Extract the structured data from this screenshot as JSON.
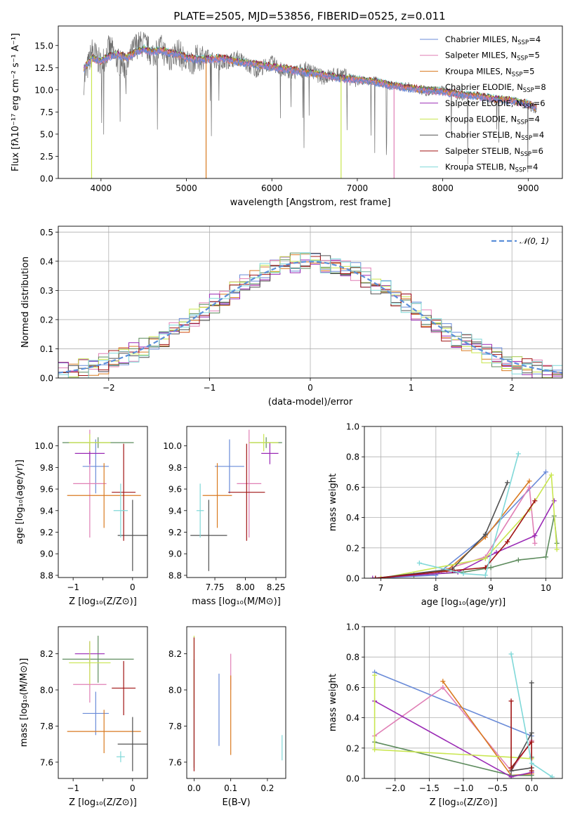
{
  "title": "PLATE=2505, MJD=53856, FIBERID=0525, z=0.011",
  "colors": [
    "#6a8bd8",
    "#e07fb5",
    "#d97a20",
    "#5e8c5e",
    "#9a2ab5",
    "#c9e64f",
    "#505050",
    "#a01414",
    "#7fd8d8"
  ],
  "legend": [
    {
      "name": "Chabrier MILES",
      "n": "4"
    },
    {
      "name": "Salpeter MILES",
      "n": "5"
    },
    {
      "name": "Kroupa MILES",
      "n": "5"
    },
    {
      "name": "Chabrier ELODIE",
      "n": "8"
    },
    {
      "name": "Salpeter ELODIE",
      "n": "6"
    },
    {
      "name": "Kroupa ELODIE",
      "n": "4"
    },
    {
      "name": "Chabrier STELIB",
      "n": "4"
    },
    {
      "name": "Salpeter STELIB",
      "n": "6"
    },
    {
      "name": "Kroupa STELIB",
      "n": "4"
    }
  ],
  "legend_prefix": "N",
  "legend_sub": "SSP",
  "normal_label": "𝒩(0, 1)",
  "chart_data": [
    {
      "id": "spectrum",
      "type": "line",
      "xlabel": "wavelength [Angstrom, rest frame]",
      "ylabel": "Flux [fλ10⁻¹⁷ erg cm⁻² s⁻¹ A⁻¹]",
      "xlim": [
        3500,
        9400
      ],
      "ylim": [
        0,
        17.2
      ],
      "xticks": [
        4000,
        5000,
        6000,
        7000,
        8000,
        9000
      ],
      "yticks": [
        0.0,
        2.5,
        5.0,
        7.5,
        10.0,
        12.5,
        15.0
      ],
      "x": [
        3800,
        3900,
        4000,
        4100,
        4200,
        4300,
        4400,
        4500,
        4600,
        4700,
        4800,
        4900,
        5000,
        5200,
        5400,
        5600,
        5800,
        6000,
        6200,
        6400,
        6600,
        6800,
        7000,
        7200,
        7400,
        7600,
        7800,
        8000,
        8200,
        8400,
        8600,
        8800,
        9000,
        9100
      ],
      "model_flux": [
        12.4,
        13.6,
        13.2,
        13.8,
        14.0,
        13.6,
        14.2,
        14.6,
        14.3,
        14.5,
        14.2,
        14.0,
        13.6,
        13.4,
        13.6,
        13.2,
        12.9,
        12.6,
        12.3,
        12.0,
        11.7,
        11.3,
        11.2,
        10.9,
        10.5,
        10.2,
        10.0,
        9.8,
        9.5,
        9.3,
        9.0,
        8.8,
        8.4,
        7.9
      ],
      "data_flux": [
        11.0,
        14.5,
        12.8,
        14.8,
        13.2,
        12.5,
        15.0,
        15.2,
        14.0,
        14.8,
        13.4,
        14.4,
        12.9,
        13.9,
        13.0,
        13.6,
        12.2,
        13.0,
        11.8,
        12.3,
        11.4,
        11.8,
        10.8,
        11.2,
        10.3,
        10.5,
        9.6,
        10.1,
        9.1,
        9.5,
        8.7,
        9.0,
        8.1,
        7.6
      ],
      "dips": [
        {
          "x": 3890,
          "y": 0.0,
          "series": 5
        },
        {
          "x": 5230,
          "y": 0.0,
          "series": 2
        },
        {
          "x": 6810,
          "y": 0.0,
          "series": 5
        },
        {
          "x": 7430,
          "y": 0.0,
          "series": 1
        }
      ]
    },
    {
      "id": "residuals",
      "type": "line",
      "xlabel": "(data-model)/error",
      "ylabel": "Normed distribution",
      "xlim": [
        -2.5,
        2.5
      ],
      "ylim": [
        0,
        0.52
      ],
      "xticks": [
        -2,
        -1,
        0,
        1,
        2
      ],
      "yticks": [
        0.0,
        0.1,
        0.2,
        0.3,
        0.4,
        0.5
      ]
    },
    {
      "id": "age_vs_Z",
      "type": "scatter",
      "xlabel": "Z [log₁₀(Z/Z⊙)]",
      "ylabel": "age  [log₁₀(age/yr)]",
      "xlim": [
        -1.25,
        0.25
      ],
      "ylim": [
        8.78,
        10.18
      ],
      "xticks": [
        -1,
        -0.5,
        0
      ],
      "xticklabels": [
        "−1",
        "",
        "0"
      ],
      "yticks": [
        8.8,
        9.0,
        9.2,
        9.4,
        9.6,
        9.8,
        10.0
      ],
      "points": [
        {
          "x": -0.62,
          "y": 9.81,
          "xerr": 0.22,
          "yerr": 0.25,
          "series": 0
        },
        {
          "x": -0.72,
          "y": 9.65,
          "xerr": 0.28,
          "yerr": 0.5,
          "series": 1
        },
        {
          "x": -0.48,
          "y": 9.54,
          "xerr": 0.62,
          "yerr": 0.3,
          "series": 2
        },
        {
          "x": -0.58,
          "y": 10.03,
          "xerr": 0.6,
          "yerr": 0.05,
          "series": 3
        },
        {
          "x": -0.72,
          "y": 9.93,
          "xerr": 0.25,
          "yerr": 0.1,
          "series": 4
        },
        {
          "x": -0.72,
          "y": 10.03,
          "xerr": 0.35,
          "yerr": 0.08,
          "series": 5
        },
        {
          "x": 0.0,
          "y": 9.17,
          "xerr": 0.25,
          "yerr": 0.33,
          "series": 6
        },
        {
          "x": -0.15,
          "y": 9.57,
          "xerr": 0.2,
          "yerr": 0.45,
          "series": 7
        },
        {
          "x": -0.2,
          "y": 9.4,
          "xerr": 0.12,
          "yerr": 0.25,
          "series": 8
        }
      ]
    },
    {
      "id": "age_vs_mass",
      "type": "scatter",
      "xlabel": "mass [log₁₀(M/M⊙)]",
      "ylabel": "",
      "xlim": [
        7.52,
        8.33
      ],
      "ylim": [
        8.78,
        10.18
      ],
      "xticks": [
        7.75,
        8.0,
        8.25
      ],
      "xticklabels": [
        "7.75",
        "8.00",
        "8.25"
      ],
      "yticks": [
        8.8,
        9.0,
        9.2,
        9.4,
        9.6,
        9.8,
        10.0
      ],
      "points": [
        {
          "x": 7.87,
          "y": 9.81,
          "xerr": 0.12,
          "yerr": 0.25,
          "series": 0
        },
        {
          "x": 8.03,
          "y": 9.65,
          "xerr": 0.1,
          "yerr": 0.5,
          "series": 1
        },
        {
          "x": 7.77,
          "y": 9.54,
          "xerr": 0.12,
          "yerr": 0.3,
          "series": 2
        },
        {
          "x": 8.17,
          "y": 10.03,
          "xerr": 0.13,
          "yerr": 0.05,
          "series": 3
        },
        {
          "x": 8.2,
          "y": 9.93,
          "xerr": 0.07,
          "yerr": 0.1,
          "series": 4
        },
        {
          "x": 8.15,
          "y": 10.03,
          "xerr": 0.12,
          "yerr": 0.08,
          "series": 5
        },
        {
          "x": 7.7,
          "y": 9.17,
          "xerr": 0.15,
          "yerr": 0.33,
          "series": 6
        },
        {
          "x": 8.01,
          "y": 9.57,
          "xerr": 0.15,
          "yerr": 0.45,
          "series": 7
        },
        {
          "x": 7.63,
          "y": 9.4,
          "xerr": 0.03,
          "yerr": 0.25,
          "series": 8
        }
      ]
    },
    {
      "id": "weight_vs_age",
      "type": "line",
      "xlabel": "age  [log₁₀(age/yr)]",
      "ylabel": "mass weight",
      "xlim": [
        6.7,
        10.3
      ],
      "ylim": [
        0,
        1.0
      ],
      "xticks": [
        7,
        8,
        9,
        10
      ],
      "yticks": [
        0.0,
        0.2,
        0.4,
        0.6,
        0.8,
        1.0
      ],
      "series": [
        {
          "series": 0,
          "x": [
            6.9,
            8.0,
            8.9,
            10.0
          ],
          "y": [
            0.0,
            0.02,
            0.28,
            0.7
          ]
        },
        {
          "series": 1,
          "x": [
            6.9,
            8.1,
            8.9,
            9.7,
            9.8
          ],
          "y": [
            0.0,
            0.05,
            0.14,
            0.6,
            0.23
          ]
        },
        {
          "series": 2,
          "x": [
            7.0,
            8.2,
            8.9,
            9.7
          ],
          "y": [
            0.0,
            0.05,
            0.27,
            0.64
          ]
        },
        {
          "series": 3,
          "x": [
            6.9,
            7.6,
            8.5,
            9.0,
            9.5,
            10.0,
            10.15,
            10.2
          ],
          "y": [
            0.0,
            0.02,
            0.04,
            0.07,
            0.12,
            0.14,
            0.41,
            0.23
          ]
        },
        {
          "series": 4,
          "x": [
            6.85,
            8.4,
            9.1,
            9.8,
            10.15
          ],
          "y": [
            0.0,
            0.04,
            0.17,
            0.28,
            0.51
          ]
        },
        {
          "series": 5,
          "x": [
            7.0,
            8.9,
            9.7,
            10.1,
            10.2
          ],
          "y": [
            0.0,
            0.13,
            0.45,
            0.68,
            0.19
          ]
        },
        {
          "series": 6,
          "x": [
            6.9,
            8.3,
            8.9,
            9.3
          ],
          "y": [
            0.0,
            0.06,
            0.29,
            0.63
          ]
        },
        {
          "series": 7,
          "x": [
            6.9,
            8.3,
            8.9,
            9.3,
            9.8
          ],
          "y": [
            0.0,
            0.05,
            0.07,
            0.24,
            0.51
          ]
        },
        {
          "series": 8,
          "x": [
            7.7,
            8.5,
            8.9,
            9.5
          ],
          "y": [
            0.1,
            0.03,
            0.02,
            0.82
          ]
        }
      ]
    },
    {
      "id": "mass_vs_Z",
      "type": "scatter",
      "xlabel": "Z [log₁₀(Z/Z⊙)]",
      "ylabel": "mass [log₁₀(M/M⊙)]",
      "xlim": [
        -1.25,
        0.25
      ],
      "ylim": [
        7.51,
        8.35
      ],
      "xticks": [
        -1,
        -0.5,
        0
      ],
      "xticklabels": [
        "−1",
        "",
        "0"
      ],
      "yticks": [
        7.6,
        7.8,
        8.0,
        8.2
      ],
      "points": [
        {
          "x": -0.62,
          "y": 7.87,
          "xerr": 0.22,
          "yerr": 0.12,
          "series": 0
        },
        {
          "x": -0.72,
          "y": 8.03,
          "xerr": 0.28,
          "yerr": 0.1,
          "series": 1
        },
        {
          "x": -0.48,
          "y": 7.77,
          "xerr": 0.62,
          "yerr": 0.12,
          "series": 2
        },
        {
          "x": -0.58,
          "y": 8.17,
          "xerr": 0.6,
          "yerr": 0.13,
          "series": 3
        },
        {
          "x": -0.72,
          "y": 8.2,
          "xerr": 0.25,
          "yerr": 0.07,
          "series": 4
        },
        {
          "x": -0.72,
          "y": 8.15,
          "xerr": 0.35,
          "yerr": 0.12,
          "series": 5
        },
        {
          "x": 0.0,
          "y": 7.7,
          "xerr": 0.25,
          "yerr": 0.15,
          "series": 6
        },
        {
          "x": -0.15,
          "y": 8.01,
          "xerr": 0.2,
          "yerr": 0.15,
          "series": 7
        },
        {
          "x": -0.2,
          "y": 7.63,
          "xerr": 0.07,
          "yerr": 0.03,
          "series": 8
        }
      ]
    },
    {
      "id": "mass_vs_ebv",
      "type": "scatter",
      "xlabel": "E(B-V)",
      "ylabel": "",
      "xlim": [
        -0.02,
        0.25
      ],
      "ylim": [
        7.51,
        8.35
      ],
      "xticks": [
        0.0,
        0.1,
        0.2
      ],
      "xticklabels": [
        "0.0",
        "0.1",
        "0.2"
      ],
      "yticks": [
        7.6,
        7.8,
        8.0,
        8.2
      ],
      "points": [
        {
          "x": 0.0,
          "y": 7.87,
          "xerr": 0,
          "yerr": 0.3,
          "series": 3
        },
        {
          "x": 0.0,
          "y": 8.1,
          "xerr": 0,
          "yerr": 0.2,
          "series": 5
        },
        {
          "x": 0.0,
          "y": 7.92,
          "xerr": 0,
          "yerr": 0.37,
          "series": 7
        },
        {
          "x": 0.068,
          "y": 7.89,
          "xerr": 0,
          "yerr": 0.2,
          "series": 0
        },
        {
          "x": 0.1,
          "y": 8.1,
          "xerr": 0,
          "yerr": 0.1,
          "series": 1
        },
        {
          "x": 0.1,
          "y": 7.86,
          "xerr": 0,
          "yerr": 0.22,
          "series": 2
        },
        {
          "x": 0.24,
          "y": 7.68,
          "xerr": 0,
          "yerr": 0.07,
          "series": 8
        }
      ]
    },
    {
      "id": "weight_vs_Z",
      "type": "line",
      "xlabel": "Z [log₁₀(Z/Z⊙)]",
      "ylabel": "mass weight",
      "xlim": [
        -2.45,
        0.45
      ],
      "ylim": [
        0,
        1.0
      ],
      "xticks": [
        -2.0,
        -1.5,
        -1.0,
        -0.5,
        0.0
      ],
      "xticklabels": [
        "−2.0",
        "−1.5",
        "−1.0",
        "−0.5",
        "0.0"
      ],
      "yticks": [
        0.0,
        0.2,
        0.4,
        0.6,
        0.8,
        1.0
      ],
      "series": [
        {
          "series": 0,
          "x": [
            -2.3,
            0.0
          ],
          "y": [
            0.7,
            0.28
          ]
        },
        {
          "series": 1,
          "x": [
            -2.3,
            -1.3,
            -0.3,
            0.0
          ],
          "y": [
            0.28,
            0.6,
            0.05,
            0.25
          ]
        },
        {
          "series": 2,
          "x": [
            -1.3,
            -0.3,
            0.0
          ],
          "y": [
            0.64,
            0.02,
            0.03
          ]
        },
        {
          "series": 3,
          "x": [
            -2.3,
            -0.3,
            0.0,
            0.0
          ],
          "y": [
            0.24,
            0.02,
            0.02,
            0.14
          ]
        },
        {
          "series": 4,
          "x": [
            -2.3,
            -0.3,
            0.0
          ],
          "y": [
            0.51,
            0.01,
            0.04
          ]
        },
        {
          "series": 5,
          "x": [
            -2.3,
            -2.3,
            -0.3,
            0.0
          ],
          "y": [
            0.68,
            0.19,
            0.14,
            0.13
          ]
        },
        {
          "series": 6,
          "x": [
            0.0,
            0.0,
            -0.3,
            0.0
          ],
          "y": [
            0.63,
            0.07,
            0.05,
            0.3
          ]
        },
        {
          "series": 7,
          "x": [
            -0.3,
            -0.3,
            0.0,
            0.0
          ],
          "y": [
            0.51,
            0.07,
            0.24,
            0.05
          ]
        },
        {
          "series": 8,
          "x": [
            -0.3,
            0.0,
            0.3
          ],
          "y": [
            0.82,
            0.1,
            0.01
          ]
        }
      ]
    }
  ]
}
